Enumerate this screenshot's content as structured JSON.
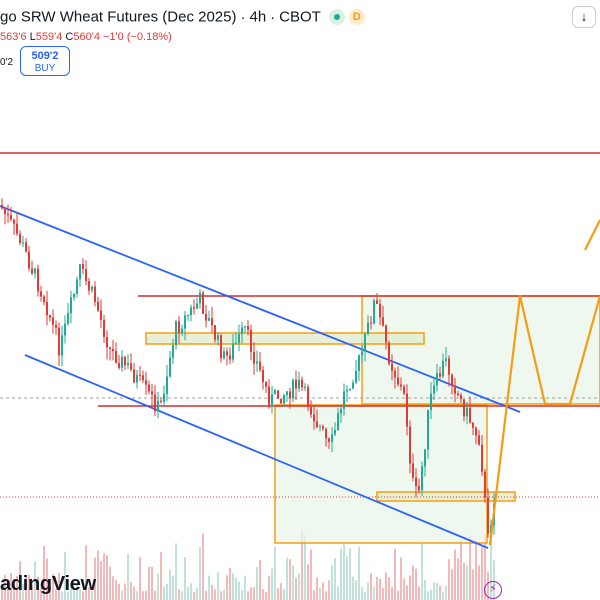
{
  "header": {
    "title": "go SRW Wheat Futures (Dec 2025)",
    "interval": "4h",
    "exchange": "CBOT",
    "dot_symbol": "D",
    "separator": "·"
  },
  "ohlc": {
    "high_val": "563'6",
    "low_key": "L",
    "low_val": "559'4",
    "close_key": "C",
    "close_val": "560'4",
    "change": "−1'0 (−0.18%)"
  },
  "left_value": "0'2",
  "buy": {
    "price": "509'2",
    "label": "BUY"
  },
  "collapse_icon": "↓",
  "logo_text": "adingView",
  "colors": {
    "up": "#22ab94",
    "down": "#e53935",
    "trend": "#2962ff",
    "level": "#d32f2f",
    "box": "#f59d12",
    "volume": "#ef9a9a"
  }
}
